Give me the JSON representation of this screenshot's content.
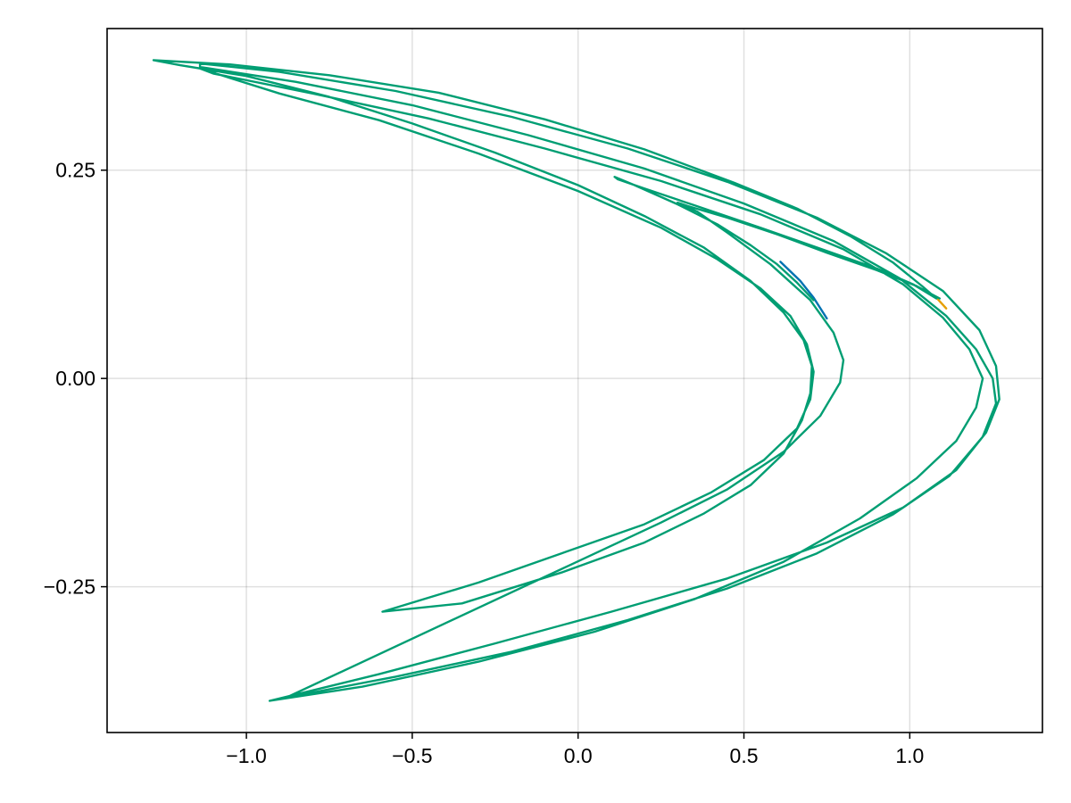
{
  "chart_data": {
    "type": "line",
    "title": "",
    "xlabel": "",
    "ylabel": "",
    "xlim": [
      -1.42,
      1.4
    ],
    "ylim": [
      -0.425,
      0.42
    ],
    "xticks": [
      -1.0,
      -0.5,
      0.0,
      0.5,
      1.0
    ],
    "xtick_labels": [
      "−1.0",
      "−0.5",
      "0.0",
      "0.5",
      "1.0"
    ],
    "yticks": [
      -0.25,
      0.0,
      0.25
    ],
    "ytick_labels": [
      "−0.25",
      "0.00",
      "0.25"
    ],
    "grid": true,
    "legend": "none",
    "series": [
      {
        "color": "#0072b2",
        "points": [
          [
            0.61,
            0.14
          ],
          [
            0.67,
            0.117
          ],
          [
            0.71,
            0.097
          ],
          [
            0.75,
            0.072
          ]
        ]
      },
      {
        "color": "#e69f00",
        "points": [
          [
            1.05,
            0.105
          ],
          [
            1.08,
            0.097
          ],
          [
            1.11,
            0.084
          ]
        ]
      },
      {
        "color": "#009e73",
        "points": [
          [
            0.71,
            0.094
          ],
          [
            0.66,
            0.115
          ],
          [
            0.6,
            0.137
          ],
          [
            0.52,
            0.16
          ],
          [
            0.42,
            0.185
          ],
          [
            0.3,
            0.209
          ],
          [
            0.17,
            0.232
          ],
          [
            0.11,
            0.242
          ],
          [
            0.12,
            0.239
          ],
          [
            0.2,
            0.228
          ],
          [
            0.35,
            0.208
          ],
          [
            0.55,
            0.181
          ],
          [
            0.75,
            0.153
          ],
          [
            0.9,
            0.132
          ],
          [
            1.01,
            0.113
          ],
          [
            1.08,
            0.096
          ],
          [
            1.04,
            0.11
          ],
          [
            0.95,
            0.139
          ],
          [
            0.82,
            0.171
          ],
          [
            0.66,
            0.204
          ],
          [
            0.47,
            0.235
          ],
          [
            0.2,
            0.275
          ],
          [
            -0.1,
            0.311
          ],
          [
            -0.42,
            0.343
          ],
          [
            -0.75,
            0.364
          ],
          [
            -1.05,
            0.377
          ],
          [
            -1.28,
            0.382
          ],
          [
            -1.2,
            0.376
          ],
          [
            -1.0,
            0.363
          ],
          [
            -0.75,
            0.338
          ],
          [
            -0.5,
            0.306
          ],
          [
            -0.25,
            0.271
          ],
          [
            0.0,
            0.232
          ],
          [
            0.2,
            0.195
          ],
          [
            0.38,
            0.157
          ],
          [
            0.52,
            0.117
          ],
          [
            0.62,
            0.079
          ],
          [
            0.68,
            0.046
          ],
          [
            0.705,
            0.015
          ],
          [
            0.7,
            -0.018
          ],
          [
            0.675,
            -0.05
          ],
          [
            0.62,
            -0.09
          ],
          [
            0.52,
            -0.128
          ],
          [
            0.38,
            -0.162
          ],
          [
            0.2,
            -0.197
          ],
          [
            -0.05,
            -0.233
          ],
          [
            -0.35,
            -0.27
          ],
          [
            -0.59,
            -0.28
          ],
          [
            -0.59,
            -0.28
          ],
          [
            -0.3,
            -0.245
          ],
          [
            -0.05,
            -0.21
          ],
          [
            0.2,
            -0.175
          ],
          [
            0.4,
            -0.137
          ],
          [
            0.56,
            -0.098
          ],
          [
            0.66,
            -0.06
          ],
          [
            0.7,
            -0.025
          ],
          [
            0.71,
            0.008
          ],
          [
            0.69,
            0.041
          ],
          [
            0.64,
            0.075
          ],
          [
            0.55,
            0.108
          ],
          [
            0.42,
            0.143
          ],
          [
            0.25,
            0.181
          ],
          [
            0.0,
            0.225
          ],
          [
            -0.3,
            0.27
          ],
          [
            -0.6,
            0.31
          ],
          [
            -0.9,
            0.342
          ],
          [
            -1.14,
            0.372
          ],
          [
            -1.1,
            0.366
          ],
          [
            -0.8,
            0.342
          ],
          [
            -0.45,
            0.312
          ],
          [
            -0.1,
            0.276
          ],
          [
            0.25,
            0.237
          ],
          [
            0.55,
            0.197
          ],
          [
            0.8,
            0.155
          ],
          [
            0.98,
            0.113
          ],
          [
            1.1,
            0.073
          ],
          [
            1.18,
            0.035
          ],
          [
            1.22,
            0.0
          ],
          [
            1.2,
            -0.035
          ],
          [
            1.14,
            -0.075
          ],
          [
            1.02,
            -0.12
          ],
          [
            0.85,
            -0.168
          ],
          [
            0.62,
            -0.22
          ],
          [
            0.35,
            -0.265
          ],
          [
            0.05,
            -0.304
          ],
          [
            -0.3,
            -0.34
          ],
          [
            -0.65,
            -0.37
          ],
          [
            -0.93,
            -0.387
          ],
          [
            -0.93,
            -0.387
          ],
          [
            -0.6,
            -0.355
          ],
          [
            -0.25,
            -0.318
          ],
          [
            0.1,
            -0.28
          ],
          [
            0.45,
            -0.24
          ],
          [
            0.75,
            -0.197
          ],
          [
            0.98,
            -0.155
          ],
          [
            1.14,
            -0.11
          ],
          [
            1.23,
            -0.065
          ],
          [
            1.27,
            -0.025
          ],
          [
            1.26,
            0.015
          ],
          [
            1.21,
            0.058
          ],
          [
            1.1,
            0.105
          ],
          [
            0.93,
            0.15
          ],
          [
            0.72,
            0.193
          ],
          [
            0.45,
            0.236
          ],
          [
            0.15,
            0.276
          ],
          [
            -0.2,
            0.314
          ],
          [
            -0.55,
            0.345
          ],
          [
            -0.9,
            0.368
          ],
          [
            -1.14,
            0.378
          ],
          [
            -1.14,
            0.374
          ],
          [
            -0.85,
            0.356
          ],
          [
            -0.5,
            0.328
          ],
          [
            -0.15,
            0.292
          ],
          [
            0.2,
            0.252
          ],
          [
            0.5,
            0.21
          ],
          [
            0.77,
            0.165
          ],
          [
            0.97,
            0.12
          ],
          [
            1.11,
            0.075
          ],
          [
            1.2,
            0.035
          ],
          [
            1.25,
            0.0
          ],
          [
            1.26,
            -0.03
          ],
          [
            1.22,
            -0.07
          ],
          [
            1.12,
            -0.117
          ],
          [
            0.95,
            -0.163
          ],
          [
            0.72,
            -0.21
          ],
          [
            0.45,
            -0.252
          ],
          [
            0.15,
            -0.29
          ],
          [
            -0.2,
            -0.328
          ],
          [
            -0.55,
            -0.358
          ],
          [
            -0.88,
            -0.383
          ],
          [
            0.25,
            -0.173
          ],
          [
            0.45,
            -0.133
          ],
          [
            0.62,
            -0.088
          ],
          [
            0.73,
            -0.045
          ],
          [
            0.79,
            -0.005
          ],
          [
            0.8,
            0.022
          ],
          [
            0.77,
            0.055
          ],
          [
            0.7,
            0.094
          ],
          [
            0.58,
            0.137
          ],
          [
            0.45,
            0.175
          ],
          [
            0.36,
            0.2
          ],
          [
            0.3,
            0.211
          ],
          [
            0.33,
            0.207
          ],
          [
            0.45,
            0.193
          ],
          [
            0.6,
            0.173
          ],
          [
            0.75,
            0.151
          ],
          [
            0.9,
            0.13
          ],
          [
            1.02,
            0.111
          ],
          [
            1.09,
            0.096
          ]
        ]
      }
    ]
  }
}
